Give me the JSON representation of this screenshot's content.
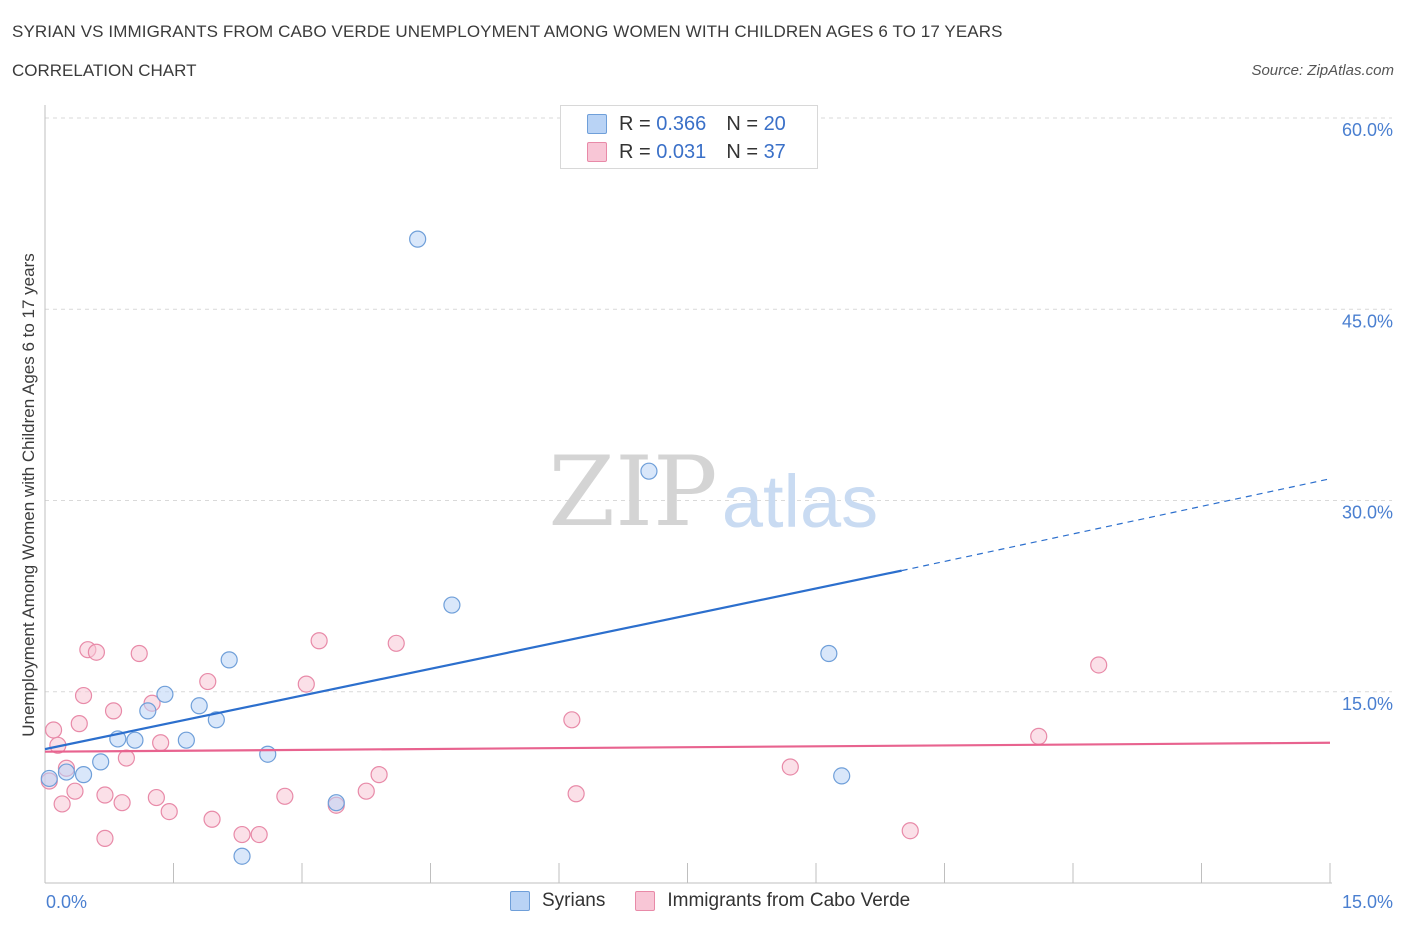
{
  "header": {
    "title": "SYRIAN VS IMMIGRANTS FROM CABO VERDE UNEMPLOYMENT AMONG WOMEN WITH CHILDREN AGES 6 TO 17 YEARS",
    "subtitle": "CORRELATION CHART",
    "source": "Source: ZipAtlas.com"
  },
  "watermark": {
    "zip": "ZIP",
    "atlas": "atlas"
  },
  "legend": {
    "rows": [
      {
        "r_label": "R = ",
        "r_value": "0.366",
        "n_label": "N = ",
        "n_value": "20"
      },
      {
        "r_label": "R = ",
        "r_value": "0.031",
        "n_label": "N = ",
        "n_value": "37"
      }
    ]
  },
  "colors": {
    "syrians_fill": "#b9d3f5",
    "syrians_stroke": "#6f9fd9",
    "syrians_line": "#2c6fcd",
    "caboverde_fill": "#f8c6d6",
    "caboverde_stroke": "#e88aa8",
    "caboverde_line": "#e8638f",
    "grid": "#d9d9d9",
    "tick_text": "#4a7fd0"
  },
  "chart_data": {
    "type": "scatter",
    "title": "SYRIAN VS IMMIGRANTS FROM CABO VERDE UNEMPLOYMENT AMONG WOMEN WITH CHILDREN AGES 6 TO 17 YEARS",
    "xlabel": "",
    "ylabel": "Unemployment Among Women with Children Ages 6 to 17 years",
    "xlim": [
      0,
      15
    ],
    "ylim": [
      0,
      60
    ],
    "x_tick_labels": [
      "0.0%",
      "15.0%"
    ],
    "y_ticks": [
      15,
      30,
      45,
      60
    ],
    "y_tick_labels": [
      "15.0%",
      "30.0%",
      "45.0%",
      "60.0%"
    ],
    "grid": "horizontal dashed",
    "legend_position": "top-center",
    "series": [
      {
        "name": "Syrians",
        "points": [
          [
            0.05,
            8.2
          ],
          [
            0.25,
            8.7
          ],
          [
            0.45,
            8.5
          ],
          [
            0.65,
            9.5
          ],
          [
            0.85,
            11.3
          ],
          [
            1.05,
            11.2
          ],
          [
            1.2,
            13.5
          ],
          [
            1.4,
            14.8
          ],
          [
            1.65,
            11.2
          ],
          [
            1.8,
            13.9
          ],
          [
            2.0,
            12.8
          ],
          [
            2.15,
            17.5
          ],
          [
            2.6,
            10.1
          ],
          [
            3.4,
            6.3
          ],
          [
            2.3,
            2.1
          ],
          [
            4.35,
            50.5
          ],
          [
            4.75,
            21.8
          ],
          [
            7.05,
            32.3
          ],
          [
            9.15,
            18.0
          ],
          [
            9.3,
            8.4
          ]
        ],
        "trend": {
          "x0": 0,
          "y0": 10.5,
          "x1": 10.0,
          "y1": 24.5,
          "dashed_to_x": 15.0,
          "dashed_to_y": 31.7
        }
      },
      {
        "name": "Immigrants from Cabo Verde",
        "points": [
          [
            0.05,
            8.0
          ],
          [
            0.1,
            12.0
          ],
          [
            0.15,
            10.8
          ],
          [
            0.2,
            6.2
          ],
          [
            0.25,
            9.0
          ],
          [
            0.35,
            7.2
          ],
          [
            0.4,
            12.5
          ],
          [
            0.45,
            14.7
          ],
          [
            0.5,
            18.3
          ],
          [
            0.6,
            18.1
          ],
          [
            0.7,
            6.9
          ],
          [
            0.7,
            3.5
          ],
          [
            0.8,
            13.5
          ],
          [
            0.9,
            6.3
          ],
          [
            0.95,
            9.8
          ],
          [
            1.1,
            18.0
          ],
          [
            1.25,
            14.1
          ],
          [
            1.3,
            6.7
          ],
          [
            1.35,
            11.0
          ],
          [
            1.45,
            5.6
          ],
          [
            1.9,
            15.8
          ],
          [
            1.95,
            5.0
          ],
          [
            2.3,
            3.8
          ],
          [
            2.5,
            3.8
          ],
          [
            2.8,
            6.8
          ],
          [
            3.05,
            15.6
          ],
          [
            3.2,
            19.0
          ],
          [
            3.4,
            6.1
          ],
          [
            3.75,
            7.2
          ],
          [
            3.9,
            8.5
          ],
          [
            4.1,
            18.8
          ],
          [
            6.15,
            12.8
          ],
          [
            6.2,
            7.0
          ],
          [
            8.7,
            9.1
          ],
          [
            10.1,
            4.1
          ],
          [
            11.6,
            11.5
          ],
          [
            12.3,
            17.1
          ]
        ],
        "trend": {
          "x0": 0,
          "y0": 10.3,
          "x1": 15.0,
          "y1": 11.0
        }
      }
    ]
  }
}
